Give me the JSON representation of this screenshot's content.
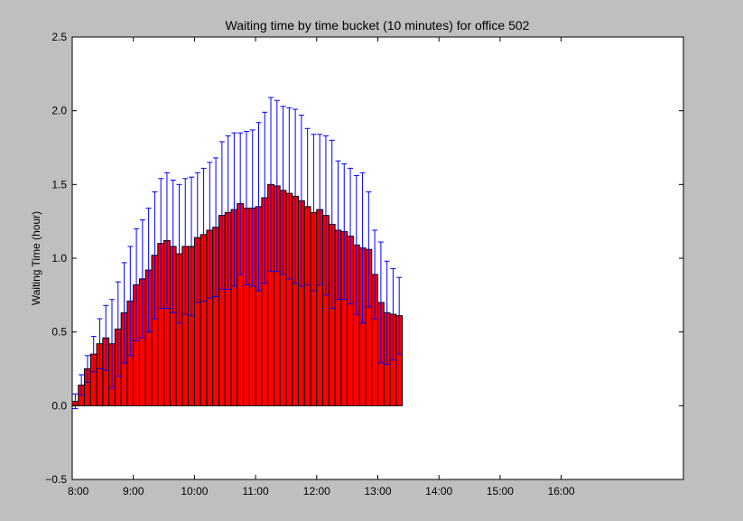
{
  "chart_data": {
    "type": "bar",
    "title": "Waiting time by time bucket (10 minutes) for office 502",
    "xlabel": "",
    "ylabel": "Waiting Time (hour)",
    "ylim": [
      -0.5,
      2.5
    ],
    "yticks": [
      "−0.5",
      "0.0",
      "0.5",
      "1.0",
      "1.5",
      "2.0",
      "2.5"
    ],
    "ytick_values": [
      -0.5,
      0.0,
      0.5,
      1.0,
      1.5,
      2.0,
      2.5
    ],
    "xlim": [
      0,
      100
    ],
    "xticks": [
      "8:00",
      "9:00",
      "10:00",
      "11:00",
      "12:00",
      "13:00",
      "14:00",
      "15:00",
      "16:00"
    ],
    "xtick_values": [
      0,
      10,
      20,
      30,
      40,
      50,
      60,
      70,
      80
    ],
    "grid": false,
    "bar_color": "#ff0000",
    "errorbar_color": "#0000ff",
    "values": [
      0.03,
      0.14,
      0.25,
      0.35,
      0.42,
      0.46,
      0.42,
      0.52,
      0.63,
      0.71,
      0.82,
      0.86,
      0.92,
      1.02,
      1.1,
      1.12,
      1.08,
      1.03,
      1.08,
      1.08,
      1.14,
      1.16,
      1.19,
      1.21,
      1.29,
      1.31,
      1.33,
      1.37,
      1.34,
      1.34,
      1.35,
      1.41,
      1.5,
      1.49,
      1.46,
      1.44,
      1.42,
      1.39,
      1.35,
      1.31,
      1.33,
      1.29,
      1.23,
      1.19,
      1.18,
      1.15,
      1.09,
      1.07,
      1.06,
      0.89,
      0.7,
      0.63,
      0.62,
      0.61
    ],
    "errors": [
      0.05,
      0.07,
      0.09,
      0.12,
      0.17,
      0.22,
      0.3,
      0.32,
      0.34,
      0.37,
      0.38,
      0.4,
      0.42,
      0.43,
      0.44,
      0.46,
      0.45,
      0.47,
      0.46,
      0.47,
      0.44,
      0.45,
      0.46,
      0.47,
      0.5,
      0.52,
      0.52,
      0.48,
      0.52,
      0.53,
      0.57,
      0.58,
      0.59,
      0.58,
      0.57,
      0.58,
      0.59,
      0.58,
      0.53,
      0.53,
      0.51,
      0.54,
      0.57,
      0.47,
      0.46,
      0.46,
      0.47,
      0.51,
      0.39,
      0.3,
      0.41,
      0.35,
      0.31,
      0.26
    ]
  }
}
